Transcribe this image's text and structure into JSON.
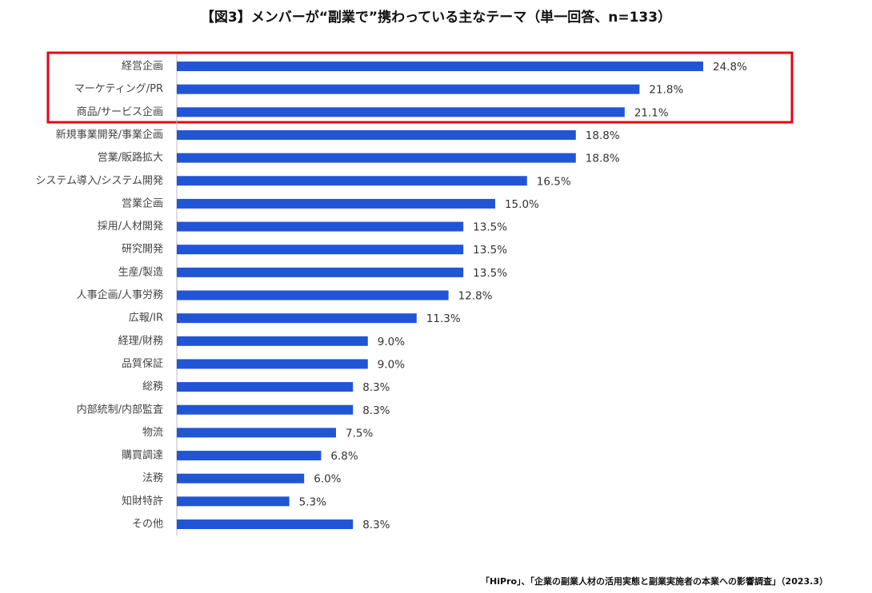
{
  "chart_data": {
    "type": "bar",
    "orientation": "horizontal",
    "title": "【図3】メンバーが“副業で”携わっている主なテーマ（単一回答、n=133）",
    "source": "「HiPro」、「企業の副業人材の活用実態と副業実施者の本業への影響調査」（2023.3）",
    "categories": [
      "経営企画",
      "マーケティング/PR",
      "商品/サービス企画",
      "新規事業開発/事業企画",
      "営業/販路拡大",
      "システム導入/システム開発",
      "営業企画",
      "採用/人材開発",
      "研究開発",
      "生産/製造",
      "人事企画/人事労務",
      "広報/IR",
      "経理/財務",
      "品質保証",
      "総務",
      "内部統制/内部監査",
      "物流",
      "購買調達",
      "法務",
      "知財特許",
      "その他"
    ],
    "values": [
      24.8,
      21.8,
      21.1,
      18.8,
      18.8,
      16.5,
      15.0,
      13.5,
      13.5,
      13.5,
      12.8,
      11.3,
      9.0,
      9.0,
      8.3,
      8.3,
      7.5,
      6.8,
      6.0,
      5.3,
      8.3
    ],
    "value_labels": [
      "24.8%",
      "21.8%",
      "21.1%",
      "18.8%",
      "18.8%",
      "16.5%",
      "15.0%",
      "13.5%",
      "13.5%",
      "13.5%",
      "12.8%",
      "11.3%",
      "9.0%",
      "9.0%",
      "8.3%",
      "8.3%",
      "7.5%",
      "6.8%",
      "6.0%",
      "5.3%",
      "8.3%"
    ],
    "color": "#2155d6"
  }
}
